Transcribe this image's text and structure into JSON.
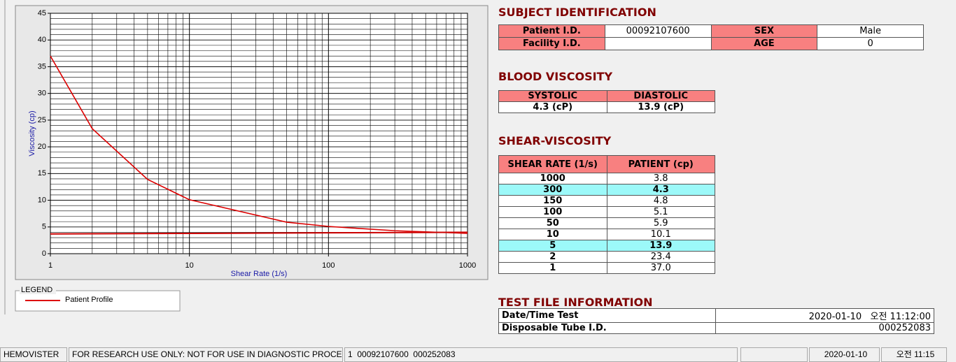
{
  "chart_data": {
    "type": "line",
    "xlabel": "Shear Rate (1/s)",
    "ylabel": "Viscosity (cp)",
    "log_x": true,
    "grid": true,
    "xlim": [
      1,
      1000
    ],
    "xticks": [
      1,
      10,
      100,
      1000
    ],
    "ylim": [
      0,
      45
    ],
    "yticks": [
      0,
      5,
      10,
      15,
      20,
      25,
      30,
      35,
      40,
      45
    ],
    "legend_title": "LEGEND",
    "series": [
      {
        "name": "Patient Profile",
        "color": "#dd0000",
        "x": [
          1,
          2,
          5,
          10,
          50,
          100,
          150,
          300,
          1000
        ],
        "values": [
          37.0,
          23.4,
          13.9,
          10.1,
          5.9,
          5.1,
          4.8,
          4.3,
          3.8
        ]
      },
      {
        "color": "#cc0000",
        "x": [
          1,
          10,
          100,
          1000
        ],
        "values": [
          3.7,
          3.8,
          3.9,
          4.0
        ]
      }
    ]
  },
  "subject": {
    "title": "SUBJECT IDENTIFICATION",
    "patient_id_label": "Patient I.D.",
    "patient_id": "00092107600",
    "sex_label": "SEX",
    "sex": "Male",
    "facility_label": "Facility I.D.",
    "age_label": "AGE",
    "age": "0"
  },
  "blood": {
    "title": "BLOOD VISCOSITY",
    "headers": [
      "SYSTOLIC",
      "DIASTOLIC"
    ],
    "values": [
      "4.3 (cP)",
      "13.9 (cP)"
    ]
  },
  "shear": {
    "title": "SHEAR-VISCOSITY",
    "headers": [
      "SHEAR RATE (1/s)",
      "PATIENT (cp)"
    ],
    "highlight_rows": [
      1,
      6
    ],
    "highlight_color": "#9cf9f9",
    "rows": [
      [
        "1000",
        "3.8"
      ],
      [
        "300",
        "4.3"
      ],
      [
        "150",
        "4.8"
      ],
      [
        "100",
        "5.1"
      ],
      [
        "50",
        "5.9"
      ],
      [
        "10",
        "10.1"
      ],
      [
        "5",
        "13.9"
      ],
      [
        "2",
        "23.4"
      ],
      [
        "1",
        "37.0"
      ]
    ]
  },
  "test_file": {
    "title": "TEST FILE INFORMATION",
    "rows": [
      [
        "Date/Time Test",
        "2020-01-10   오전 11:12:00"
      ],
      [
        "Disposable Tube I.D.",
        "000252083"
      ]
    ]
  },
  "status_bar": [
    "HEMOVISTER",
    "FOR RESEARCH USE ONLY: NOT FOR USE IN DIAGNOSTIC PROCEDURES",
    "1  00092107600  000252083",
    "2020-01-10",
    "오전 11:15"
  ]
}
